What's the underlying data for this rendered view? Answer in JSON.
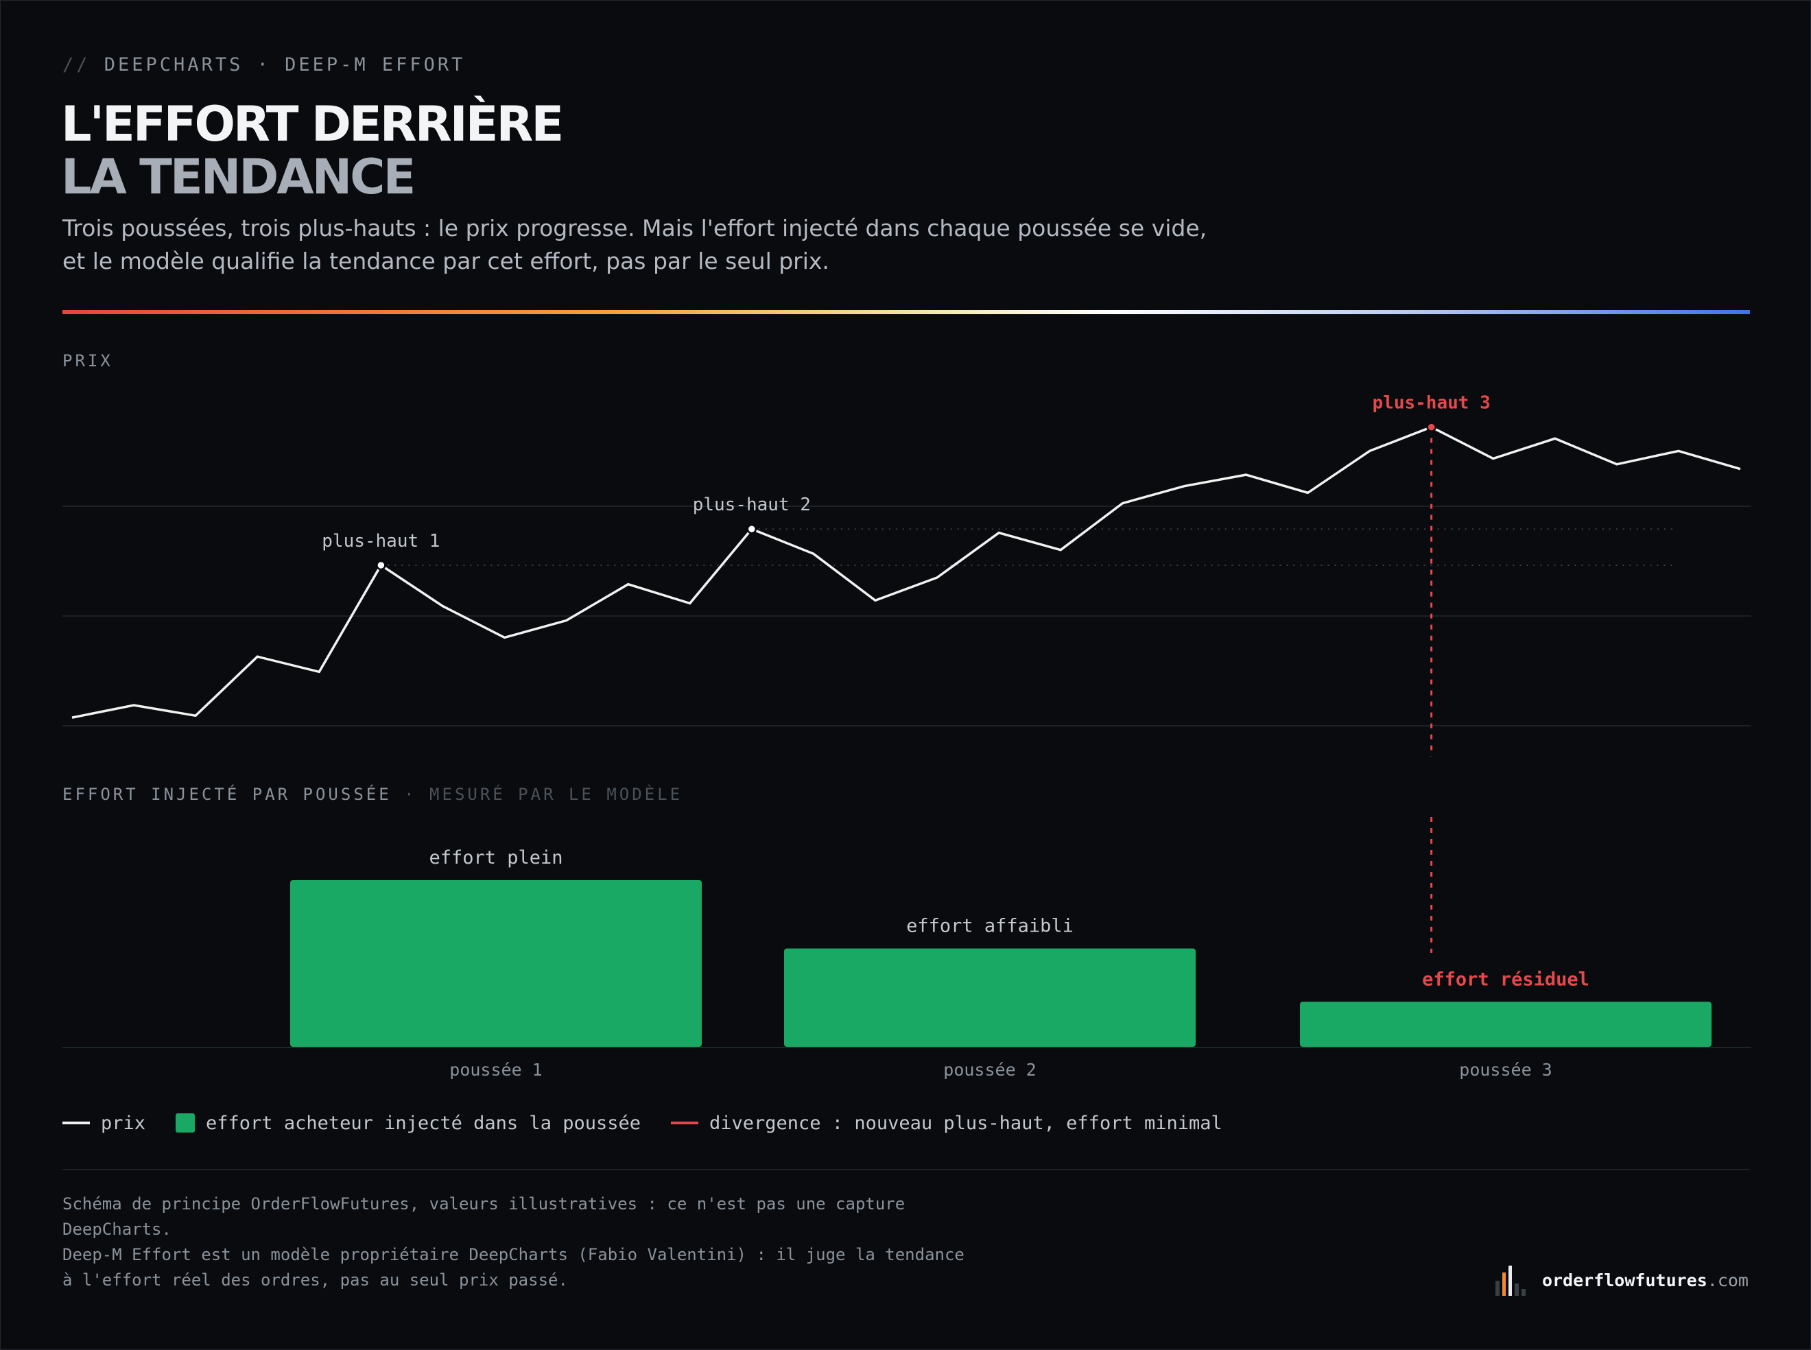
{
  "header": {
    "kicker_prefix": "//",
    "kicker": "DEEPCHARTS · DEEP-M EFFORT",
    "title_line1": "L'EFFORT DERRIÈRE",
    "title_line2": "LA TENDANCE",
    "subtitle_line1": "Trois poussées, trois plus-hauts : le prix progresse. Mais l'effort injecté dans chaque poussée se vide,",
    "subtitle_line2": "et le modèle qualifie la tendance par cet effort, pas par le seul prix."
  },
  "colors": {
    "background": "#090b0e",
    "price_line": "#f1f1f1",
    "effort_bar": "#1aa865",
    "divergence": "#e5484d",
    "gradient": [
      "#e8453c",
      "#f5a23a",
      "#ffffff",
      "#3f73e8"
    ]
  },
  "sections": {
    "price_label": "PRIX",
    "effort_label": "EFFORT INJECTÉ PAR POUSSÉE",
    "effort_label_suffix": "· MESURÉ PAR LE MODÈLE"
  },
  "chart_data": [
    {
      "type": "line",
      "name": "prix",
      "x": [
        0,
        1,
        2,
        3,
        4,
        5,
        6,
        7,
        8,
        9,
        10,
        11,
        12,
        13,
        14,
        15,
        16,
        17,
        18,
        19,
        20,
        21,
        22,
        23,
        24,
        25,
        26,
        27
      ],
      "y": [
        0.5,
        1.8,
        0.7,
        6.9,
        5.3,
        16.5,
        12.2,
        8.9,
        10.7,
        14.5,
        12.5,
        20.3,
        17.7,
        12.8,
        15.2,
        19.9,
        18.1,
        23.0,
        24.8,
        26.0,
        24.1,
        28.5,
        31.0,
        27.7,
        29.8,
        27.1,
        28.5,
        26.6
      ],
      "ylim": [
        0,
        34
      ],
      "highs": [
        {
          "label": "plus-haut 1",
          "x": 5,
          "y": 16.5
        },
        {
          "label": "plus-haut 2",
          "x": 11,
          "y": 20.3
        },
        {
          "label": "plus-haut 3",
          "x": 22,
          "y": 31.0,
          "divergence": true
        }
      ],
      "grid": true
    },
    {
      "type": "bar",
      "name": "effort acheteur injecté dans la poussée",
      "categories": [
        "poussée 1",
        "poussée 2",
        "poussée 3"
      ],
      "values": [
        100,
        59,
        27
      ],
      "annotations": [
        "effort plein",
        "effort affaibli",
        "effort résiduel"
      ],
      "ylim": [
        0,
        100
      ]
    }
  ],
  "legend": {
    "price": "prix",
    "effort": "effort acheteur injecté dans la poussée",
    "divergence": "divergence : nouveau plus-haut, effort minimal"
  },
  "footer": {
    "note_line1": "Schéma de principe OrderFlowFutures, valeurs illustratives : ce n'est pas une capture",
    "note_line2": "DeepCharts.",
    "note_line3": "Deep-M Effort est un modèle propriétaire DeepCharts (Fabio Valentini) : il juge la tendance",
    "note_line4": "à l'effort réel des ordres, pas au seul prix passé.",
    "brand_name": "orderflowfutures",
    "brand_tld": ".com"
  }
}
